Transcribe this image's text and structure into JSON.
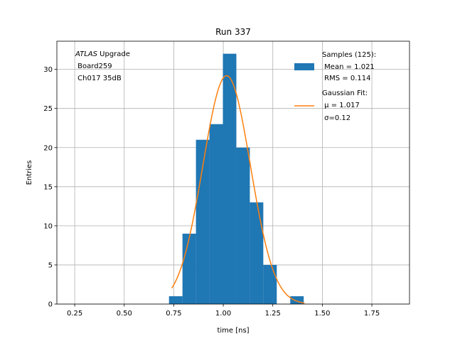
{
  "chart_data": {
    "type": "bar",
    "title": "Run 337",
    "xlabel": "time [ns]",
    "ylabel": "Entries",
    "xlim": [
      0.16,
      1.94
    ],
    "ylim": [
      0,
      33.6
    ],
    "xticks": [
      0.25,
      0.5,
      0.75,
      1.0,
      1.25,
      1.5,
      1.75
    ],
    "xtick_labels": [
      "0.25",
      "0.50",
      "0.75",
      "1.00",
      "1.25",
      "1.50",
      "1.75"
    ],
    "yticks": [
      0,
      5,
      10,
      15,
      20,
      25,
      30
    ],
    "ytick_labels": [
      "0",
      "5",
      "10",
      "15",
      "20",
      "25",
      "30"
    ],
    "grid": true,
    "legend_position": "top-right",
    "histogram": {
      "bin_edges": [
        0.726,
        0.794,
        0.862,
        0.93,
        0.998,
        1.066,
        1.134,
        1.202,
        1.27,
        1.338,
        1.406
      ],
      "counts": [
        1,
        9,
        21,
        23,
        32,
        20,
        13,
        5,
        0,
        1
      ],
      "color": "#1f77b4"
    },
    "fit": {
      "mu": 1.017,
      "sigma": 0.12,
      "amplitude": 29.2,
      "x_range": [
        0.74,
        1.41
      ],
      "color": "#ff7f0e"
    },
    "legend": [
      {
        "lines": [
          "Samples (125):",
          " Mean = 1.021",
          " RMS = 0.114"
        ],
        "color": "#1f77b4",
        "kind": "patch"
      },
      {
        "lines": [
          "Gaussian Fit:",
          " μ = 1.017",
          " σ=0.12"
        ],
        "color": "#ff7f0e",
        "kind": "line"
      }
    ],
    "annotation": {
      "italic": "ATLAS",
      "rest": " Upgrade",
      "line2": " Board259",
      "line3": " Ch017 35dB"
    }
  }
}
